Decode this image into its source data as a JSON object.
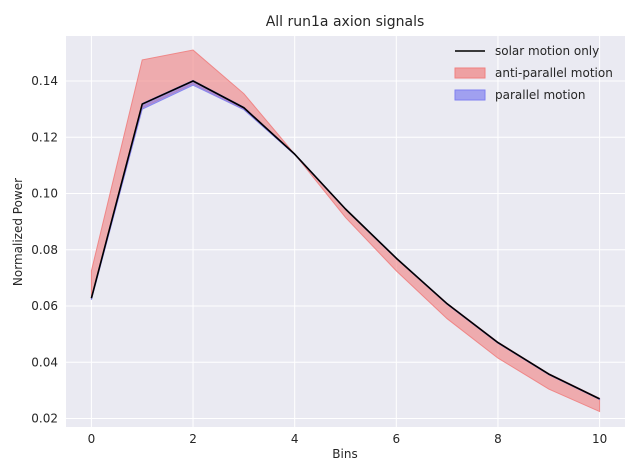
{
  "chart_data": {
    "type": "area",
    "title": "All run1a axion signals",
    "xlabel": "Bins",
    "ylabel": "Normalized Power",
    "x": [
      0,
      1,
      2,
      3,
      4,
      5,
      6,
      7,
      8,
      9,
      10
    ],
    "xlim": [
      -0.5,
      10.5
    ],
    "ylim": [
      0.017,
      0.156
    ],
    "xticks": [
      0,
      2,
      4,
      6,
      8,
      10
    ],
    "yticks": [
      0.02,
      0.04,
      0.06,
      0.08,
      0.1,
      0.12,
      0.14
    ],
    "ytick_labels": [
      "0.02",
      "0.04",
      "0.06",
      "0.08",
      "0.10",
      "0.12",
      "0.14"
    ],
    "xtick_labels": [
      "0",
      "2",
      "4",
      "6",
      "8",
      "10"
    ],
    "grid": true,
    "legend_position": "top-right",
    "series": [
      {
        "name": "solar motion only",
        "kind": "line",
        "color": "#000000",
        "values": [
          0.0628,
          0.1318,
          0.14,
          0.1305,
          0.114,
          0.0945,
          0.077,
          0.0608,
          0.047,
          0.0358,
          0.027
        ]
      },
      {
        "name": "anti-parallel motion",
        "kind": "band",
        "color": "#f08080",
        "lower": [
          0.0625,
          0.1305,
          0.139,
          0.13,
          0.114,
          0.0915,
          0.0725,
          0.0555,
          0.0415,
          0.0305,
          0.0225
        ],
        "upper": [
          0.0725,
          0.1475,
          0.151,
          0.1355,
          0.114,
          0.0945,
          0.077,
          0.061,
          0.0472,
          0.036,
          0.0272
        ]
      },
      {
        "name": "parallel motion",
        "kind": "band",
        "color": "#8080f0",
        "lower": [
          0.0622,
          0.13,
          0.1385,
          0.1298,
          0.1138,
          0.0943,
          0.0768,
          0.0606,
          0.0468,
          0.0356,
          0.0268
        ],
        "upper": [
          0.063,
          0.132,
          0.1402,
          0.1307,
          0.1141,
          0.0946,
          0.0771,
          0.0609,
          0.0471,
          0.0359,
          0.0271
        ]
      }
    ]
  }
}
